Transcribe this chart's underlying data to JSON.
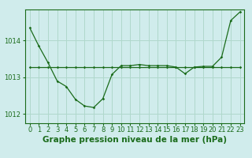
{
  "title": "Graphe pression niveau de la mer (hPa)",
  "background_color": "#d0ecec",
  "grid_color": "#b0d8cc",
  "line_color": "#1a6b1a",
  "xlim": [
    -0.5,
    23.5
  ],
  "ylim": [
    1011.75,
    1014.85
  ],
  "yticks": [
    1012,
    1013,
    1014
  ],
  "xticks": [
    0,
    1,
    2,
    3,
    4,
    5,
    6,
    7,
    8,
    9,
    10,
    11,
    12,
    13,
    14,
    15,
    16,
    17,
    18,
    19,
    20,
    21,
    22,
    23
  ],
  "curve1_x": [
    0,
    1,
    2,
    3,
    4,
    5,
    6,
    7,
    8,
    9,
    10,
    11,
    12,
    13,
    14,
    15,
    16,
    17,
    18,
    19,
    20,
    21,
    22,
    23
  ],
  "curve1_y": [
    1014.35,
    1013.85,
    1013.4,
    1012.9,
    1012.75,
    1012.4,
    1012.22,
    1012.18,
    1012.42,
    1013.08,
    1013.32,
    1013.32,
    1013.35,
    1013.32,
    1013.32,
    1013.32,
    1013.28,
    1013.1,
    1013.28,
    1013.3,
    1013.3,
    1013.55,
    1014.55,
    1014.78
  ],
  "curve2_x": [
    0,
    1,
    2,
    3,
    4,
    5,
    6,
    7,
    8,
    9,
    10,
    11,
    12,
    13,
    14,
    15,
    16,
    17,
    18,
    19,
    20,
    21,
    22,
    23
  ],
  "curve2_y": [
    1013.27,
    1013.27,
    1013.27,
    1013.27,
    1013.27,
    1013.27,
    1013.27,
    1013.27,
    1013.27,
    1013.27,
    1013.27,
    1013.27,
    1013.27,
    1013.27,
    1013.27,
    1013.27,
    1013.27,
    1013.27,
    1013.27,
    1013.27,
    1013.27,
    1013.27,
    1013.27,
    1013.27
  ],
  "title_fontsize": 7.5,
  "tick_fontsize": 6.0
}
